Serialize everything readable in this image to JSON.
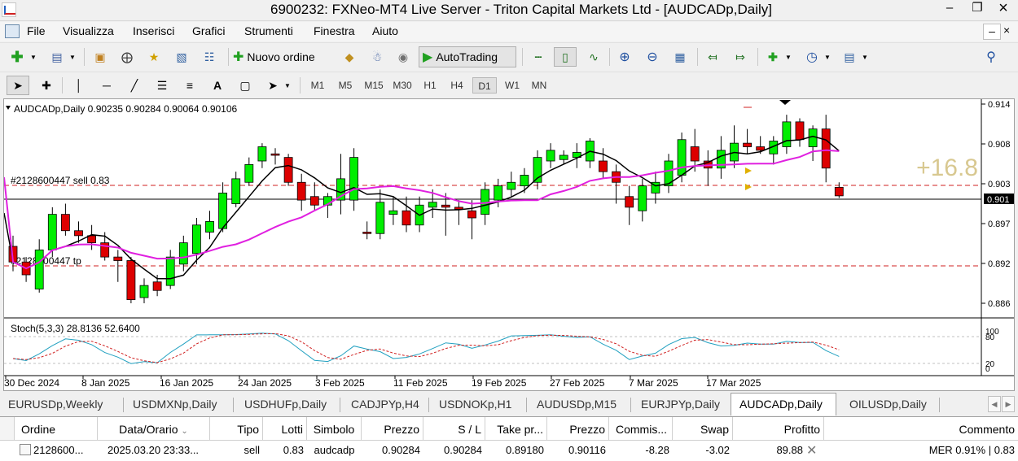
{
  "window": {
    "title": "6900232: FXNeo-MT4 Live Server - Triton Capital Markets Ltd - [AUDCADp,Daily]",
    "minimize_icon": "minimize-icon",
    "restore_icon": "restore-icon",
    "close_icon": "close-icon"
  },
  "menu": [
    "File",
    "Visualizza",
    "Inserisci",
    "Grafici",
    "Strumenti",
    "Finestra",
    "Aiuto"
  ],
  "toolbar": {
    "new_order_label": "Nuovo ordine",
    "autotrading_label": "AutoTrading"
  },
  "timeframes": [
    "M1",
    "M5",
    "M15",
    "M30",
    "H1",
    "H4",
    "D1",
    "W1",
    "MN"
  ],
  "active_timeframe": "D1",
  "chart": {
    "symbol_info": "AUDCADp,Daily  0.90235 0.90284 0.90064 0.90106",
    "sell_order_label": "#2128600447 sell 0.83",
    "tp_label": "#2128600447 tp",
    "profit_pips": "+16.8",
    "price_labels": [
      "0.914",
      "0.908",
      "0.903",
      "0.897",
      "0.892",
      "0.886"
    ],
    "current_price": "0.901",
    "stoch_label": "Stoch(5,3,3) 28.8136 52.6400",
    "stoch_levels": [
      "100",
      "80",
      "20",
      "0"
    ],
    "date_labels": [
      "30 Dec 2024",
      "8 Jan 2025",
      "16 Jan 2025",
      "24 Jan 2025",
      "3 Feb 2025",
      "11 Feb 2025",
      "19 Feb 2025",
      "27 Feb 2025",
      "7 Mar 2025",
      "17 Mar 2025"
    ],
    "colors": {
      "bull": "#00ee00",
      "bear": "#dd0000",
      "ma_fast": "#000000",
      "ma_slow": "#e020e0",
      "stoch_main": "#20a0c0",
      "stoch_signal": "#d02020"
    }
  },
  "tabs": [
    "EURUSDp,Weekly",
    "USDMXNp,Daily",
    "USDHUFp,Daily",
    "CADJPYp,H4",
    "USDNOKp,H1",
    "AUDUSDp,M15",
    "EURJPYp,Daily",
    "AUDCADp,Daily",
    "OILUSDp,Daily"
  ],
  "active_tab": "AUDCADp,Daily",
  "orders": {
    "headers": [
      "Ordine",
      "Data/Orario",
      "Tipo",
      "Lotti",
      "Simbolo",
      "Prezzo",
      "S / L",
      "Take pr...",
      "Prezzo",
      "Commis...",
      "Swap",
      "Profitto",
      "Commento"
    ],
    "row": [
      "2128600...",
      "2025.03.20 23:33...",
      "sell",
      "0.83",
      "audcadp",
      "0.90284",
      "0.90284",
      "0.89180",
      "0.90116",
      "-8.28",
      "-3.02",
      "89.88",
      "MER 0.91% | 0.83"
    ]
  }
}
